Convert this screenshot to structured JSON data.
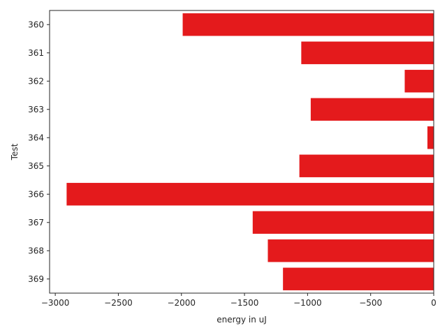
{
  "chart_data": {
    "type": "bar",
    "orientation": "horizontal",
    "title": "",
    "xlabel": "energy in uJ",
    "ylabel": "Test",
    "categories": [
      "360",
      "361",
      "362",
      "363",
      "364",
      "365",
      "366",
      "367",
      "368",
      "369"
    ],
    "values": [
      -1990,
      -1050,
      -230,
      -975,
      -50,
      -1065,
      -2910,
      -1435,
      -1315,
      -1195
    ],
    "xlim": [
      -3045,
      0
    ],
    "xticks": [
      -3000,
      -2500,
      -2000,
      -1500,
      -1000,
      -500,
      0
    ],
    "xtick_labels": [
      "−3000",
      "−2500",
      "−2000",
      "−1500",
      "−1000",
      "−500",
      "0"
    ],
    "bar_color": "#e41a1c",
    "grid": false,
    "legend": "none"
  }
}
